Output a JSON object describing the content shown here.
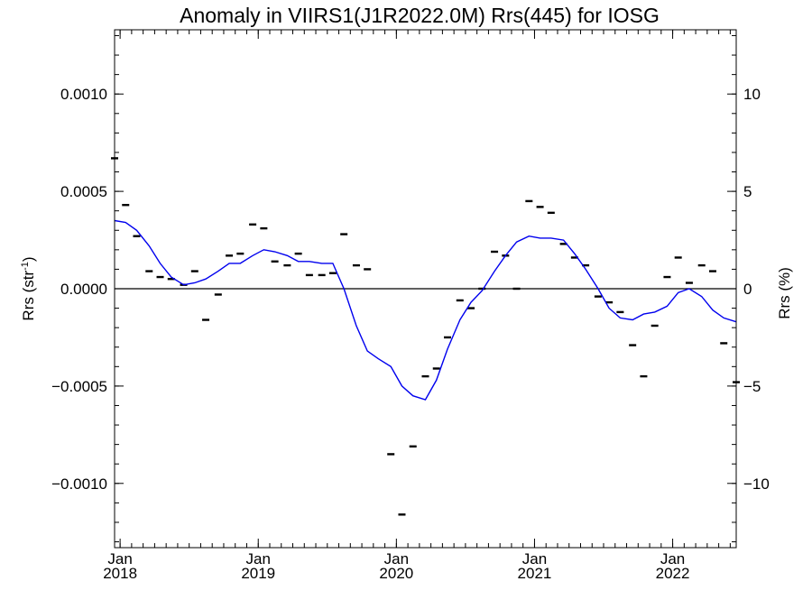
{
  "chart_data": {
    "type": "line",
    "title": "Anomaly in VIIRS1(J1R2022.0M) Rrs(445) for IOSG",
    "ylabel_left": "Rrs (str",
    "ylabel_left_sup": "-1",
    "ylabel_left_suffix": ")",
    "ylabel_right": "Rrs (%)",
    "ylim_left": [
      -0.00133,
      0.00133
    ],
    "ylim_right": [
      -13.3,
      13.3
    ],
    "xlim": [
      2017.96,
      2022.46
    ],
    "yticks_left": [
      {
        "value": 0.001,
        "label": "0.0010"
      },
      {
        "value": 0.0005,
        "label": "0.0005"
      },
      {
        "value": 0.0,
        "label": "0.0000"
      },
      {
        "value": -0.0005,
        "label": "−0.0005"
      },
      {
        "value": -0.001,
        "label": "−0.0010"
      }
    ],
    "yticks_right": [
      {
        "value": 10,
        "label": "10"
      },
      {
        "value": 5,
        "label": "5"
      },
      {
        "value": 0,
        "label": "0"
      },
      {
        "value": -5,
        "label": "−5"
      },
      {
        "value": -10,
        "label": "−10"
      }
    ],
    "xticks": [
      {
        "value": 2018.0,
        "month": "Jan",
        "year": "2018"
      },
      {
        "value": 2019.0,
        "month": "Jan",
        "year": "2019"
      },
      {
        "value": 2020.0,
        "month": "Jan",
        "year": "2020"
      },
      {
        "value": 2021.0,
        "month": "Jan",
        "year": "2021"
      },
      {
        "value": 2022.0,
        "month": "Jan",
        "year": "2022"
      }
    ],
    "zero_line": 0.0,
    "series": [
      {
        "kind": "points",
        "color": "#000000",
        "points": [
          [
            2017.96,
            0.00067
          ],
          [
            2018.04,
            0.00043
          ],
          [
            2018.12,
            0.00027
          ],
          [
            2018.21,
            9e-05
          ],
          [
            2018.29,
            6e-05
          ],
          [
            2018.37,
            5e-05
          ],
          [
            2018.46,
            2e-05
          ],
          [
            2018.54,
            9e-05
          ],
          [
            2018.62,
            -0.00016
          ],
          [
            2018.71,
            -3e-05
          ],
          [
            2018.79,
            0.00017
          ],
          [
            2018.87,
            0.00018
          ],
          [
            2018.96,
            0.00033
          ],
          [
            2019.04,
            0.00031
          ],
          [
            2019.12,
            0.00014
          ],
          [
            2019.21,
            0.00012
          ],
          [
            2019.29,
            0.00018
          ],
          [
            2019.37,
            7e-05
          ],
          [
            2019.46,
            7e-05
          ],
          [
            2019.54,
            8e-05
          ],
          [
            2019.62,
            0.00028
          ],
          [
            2019.71,
            0.00012
          ],
          [
            2019.79,
            0.0001
          ],
          [
            2019.96,
            -0.00085
          ],
          [
            2020.04,
            -0.00116
          ],
          [
            2020.12,
            -0.00081
          ],
          [
            2020.21,
            -0.00045
          ],
          [
            2020.29,
            -0.00041
          ],
          [
            2020.37,
            -0.00025
          ],
          [
            2020.46,
            -6e-05
          ],
          [
            2020.54,
            -0.0001
          ],
          [
            2020.62,
            0.0
          ],
          [
            2020.71,
            0.00019
          ],
          [
            2020.79,
            0.00017
          ],
          [
            2020.87,
            0.0
          ],
          [
            2020.96,
            0.00045
          ],
          [
            2021.04,
            0.00042
          ],
          [
            2021.12,
            0.00039
          ],
          [
            2021.21,
            0.00023
          ],
          [
            2021.29,
            0.00016
          ],
          [
            2021.37,
            0.00012
          ],
          [
            2021.46,
            -4e-05
          ],
          [
            2021.54,
            -7e-05
          ],
          [
            2021.62,
            -0.00012
          ],
          [
            2021.71,
            -0.00029
          ],
          [
            2021.79,
            -0.00045
          ],
          [
            2021.87,
            -0.00019
          ],
          [
            2021.96,
            6e-05
          ],
          [
            2022.04,
            0.00016
          ],
          [
            2022.12,
            3e-05
          ],
          [
            2022.21,
            0.00012
          ],
          [
            2022.29,
            9e-05
          ],
          [
            2022.37,
            -0.00028
          ],
          [
            2022.46,
            -0.00048
          ]
        ]
      },
      {
        "kind": "line",
        "color": "#0000ee",
        "points": [
          [
            2017.96,
            0.00035
          ],
          [
            2018.04,
            0.00034
          ],
          [
            2018.12,
            0.0003
          ],
          [
            2018.21,
            0.00022
          ],
          [
            2018.29,
            0.00013
          ],
          [
            2018.37,
            6e-05
          ],
          [
            2018.46,
            2e-05
          ],
          [
            2018.54,
            3e-05
          ],
          [
            2018.62,
            5e-05
          ],
          [
            2018.71,
            9e-05
          ],
          [
            2018.79,
            0.00013
          ],
          [
            2018.87,
            0.00013
          ],
          [
            2018.96,
            0.00017
          ],
          [
            2019.04,
            0.0002
          ],
          [
            2019.12,
            0.00019
          ],
          [
            2019.21,
            0.00017
          ],
          [
            2019.29,
            0.00014
          ],
          [
            2019.37,
            0.00014
          ],
          [
            2019.46,
            0.00013
          ],
          [
            2019.54,
            0.00013
          ],
          [
            2019.62,
            0.0
          ],
          [
            2019.71,
            -0.00019
          ],
          [
            2019.79,
            -0.00032
          ],
          [
            2019.87,
            -0.00036
          ],
          [
            2019.96,
            -0.0004
          ],
          [
            2020.04,
            -0.0005
          ],
          [
            2020.12,
            -0.00055
          ],
          [
            2020.21,
            -0.00057
          ],
          [
            2020.29,
            -0.00047
          ],
          [
            2020.37,
            -0.00031
          ],
          [
            2020.46,
            -0.00016
          ],
          [
            2020.54,
            -7e-05
          ],
          [
            2020.62,
            -1e-05
          ],
          [
            2020.71,
            9e-05
          ],
          [
            2020.79,
            0.00017
          ],
          [
            2020.87,
            0.00024
          ],
          [
            2020.96,
            0.00027
          ],
          [
            2021.04,
            0.00026
          ],
          [
            2021.12,
            0.00026
          ],
          [
            2021.21,
            0.00025
          ],
          [
            2021.29,
            0.00018
          ],
          [
            2021.37,
            0.0001
          ],
          [
            2021.46,
            0.0
          ],
          [
            2021.54,
            -0.0001
          ],
          [
            2021.62,
            -0.00015
          ],
          [
            2021.71,
            -0.00016
          ],
          [
            2021.79,
            -0.00013
          ],
          [
            2021.87,
            -0.00012
          ],
          [
            2021.96,
            -9e-05
          ],
          [
            2022.04,
            -2e-05
          ],
          [
            2022.12,
            0.0
          ],
          [
            2022.21,
            -4e-05
          ],
          [
            2022.29,
            -0.00011
          ],
          [
            2022.37,
            -0.00015
          ],
          [
            2022.46,
            -0.00017
          ]
        ]
      }
    ]
  }
}
